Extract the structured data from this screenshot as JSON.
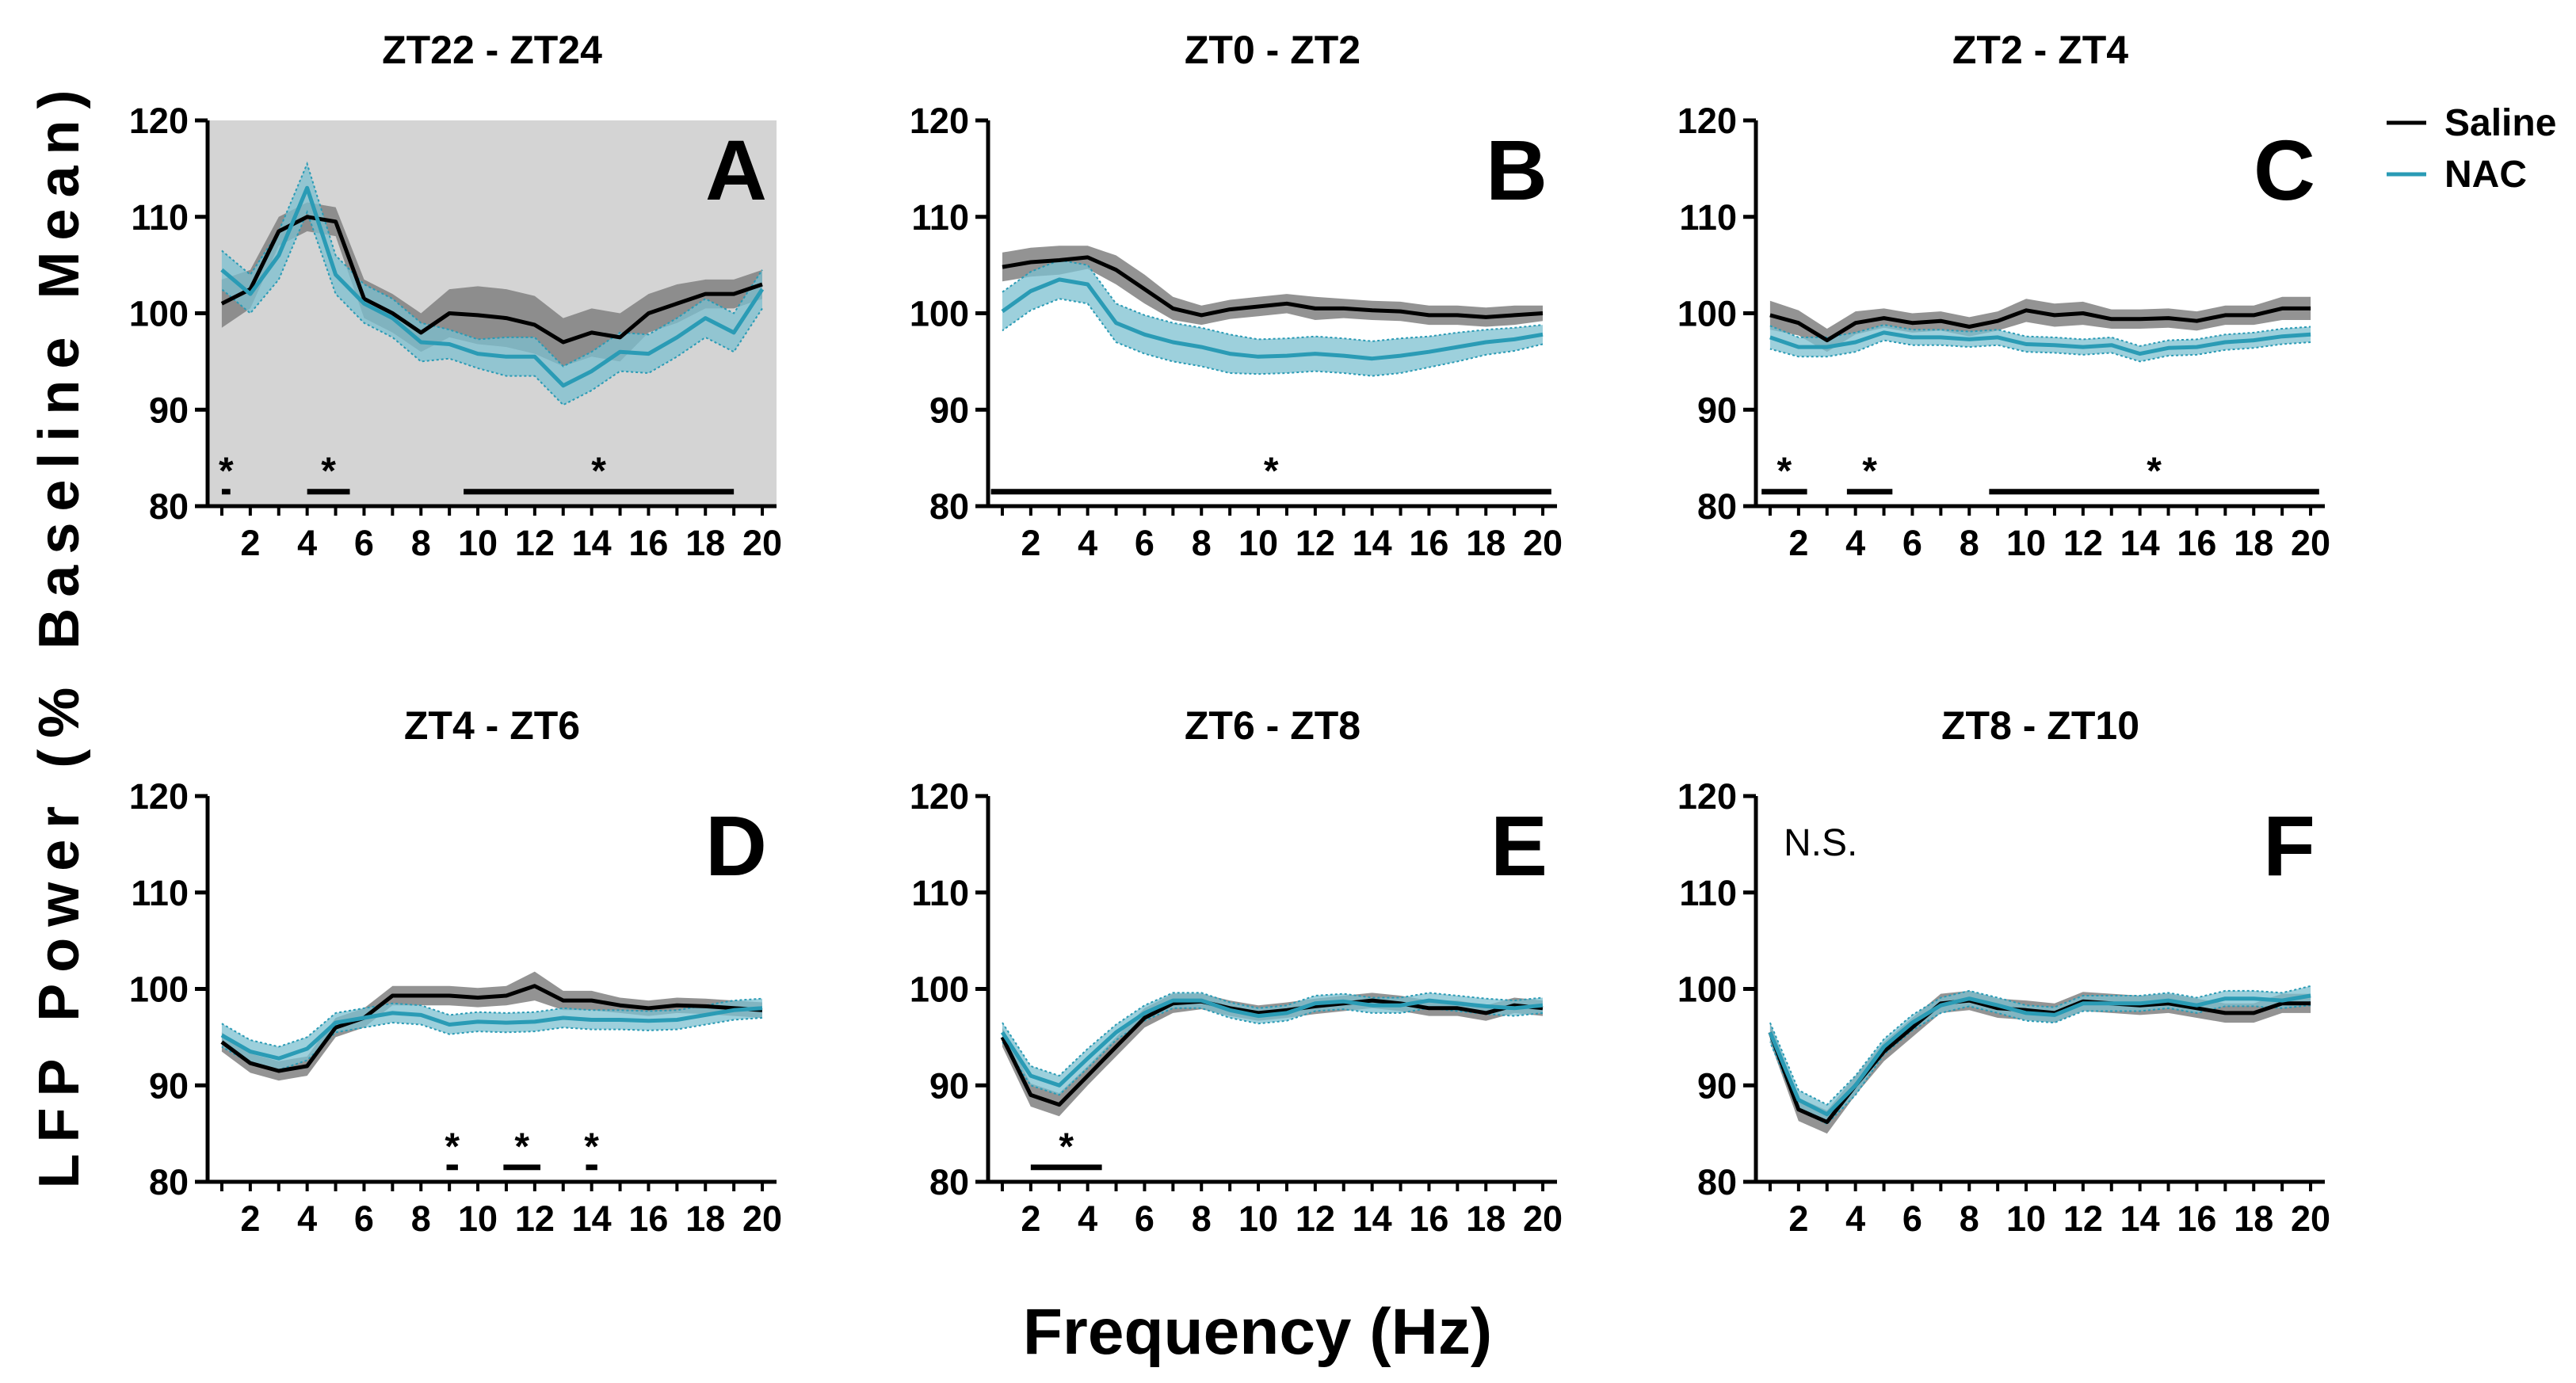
{
  "figure": {
    "ylabel": "LFP Power (% Baseline Mean)",
    "xlabel": "Frequency (Hz)",
    "legend": [
      {
        "name": "Saline",
        "color": "#000000"
      },
      {
        "name": "NAC",
        "color": "#2a9bb5"
      }
    ],
    "colors": {
      "saline": "#000000",
      "saline_band": "#808080",
      "nac": "#2a9bb5",
      "nac_band": "#7cc0d0",
      "shaded_bg": "#d4d4d4"
    }
  },
  "chart_data": [
    {
      "panel": "A",
      "title": "ZT22 - ZT24",
      "type": "line",
      "shaded_background": true,
      "note": "",
      "x": [
        1,
        2,
        3,
        4,
        5,
        6,
        7,
        8,
        9,
        10,
        11,
        12,
        13,
        14,
        15,
        16,
        17,
        18,
        19,
        20
      ],
      "xticks": [
        2,
        4,
        6,
        8,
        10,
        12,
        14,
        16,
        18,
        20
      ],
      "ylim": [
        80,
        120
      ],
      "yticks": [
        80,
        90,
        100,
        110,
        120
      ],
      "series": [
        {
          "name": "Saline",
          "values": [
            101,
            102.5,
            108.5,
            110,
            109.5,
            101.5,
            100,
            98,
            100,
            99.8,
            99.5,
            98.8,
            97,
            98,
            97.5,
            100,
            101,
            102,
            102,
            103
          ],
          "sem": [
            2.5,
            2,
            1.5,
            1.5,
            1.5,
            2,
            2,
            2,
            2.5,
            3,
            3,
            3,
            2.5,
            2.5,
            2.5,
            2,
            2,
            1.5,
            1.5,
            1.5
          ]
        },
        {
          "name": "NAC",
          "values": [
            104.5,
            102,
            106,
            113,
            104,
            101,
            99.5,
            97,
            96.8,
            95.8,
            95.5,
            95.5,
            92.5,
            94,
            96,
            95.8,
            97.5,
            99.5,
            98,
            102.5
          ],
          "sem": [
            2,
            2,
            2.5,
            2.5,
            2,
            2,
            2,
            2,
            1.5,
            1.5,
            2,
            2,
            2,
            2,
            2,
            2,
            2,
            2,
            2,
            2
          ]
        }
      ],
      "significance": [
        {
          "from": 1,
          "to": 1.3,
          "label": "*"
        },
        {
          "from": 4,
          "to": 5.5,
          "label": "*"
        },
        {
          "from": 9.5,
          "to": 19,
          "label": "*"
        }
      ]
    },
    {
      "panel": "B",
      "title": "ZT0 - ZT2",
      "type": "line",
      "shaded_background": false,
      "note": "",
      "x": [
        1,
        2,
        3,
        4,
        5,
        6,
        7,
        8,
        9,
        10,
        11,
        12,
        13,
        14,
        15,
        16,
        17,
        18,
        19,
        20
      ],
      "xticks": [
        2,
        4,
        6,
        8,
        10,
        12,
        14,
        16,
        18,
        20
      ],
      "ylim": [
        80,
        120
      ],
      "yticks": [
        80,
        90,
        100,
        110,
        120
      ],
      "series": [
        {
          "name": "Saline",
          "values": [
            104.8,
            105.3,
            105.5,
            105.8,
            104.5,
            102.5,
            100.5,
            99.8,
            100.4,
            100.7,
            101,
            100.5,
            100.5,
            100.3,
            100.2,
            99.8,
            99.8,
            99.6,
            99.8,
            100
          ],
          "sem": [
            1.5,
            1.5,
            1.5,
            1.2,
            1.5,
            1.5,
            1.2,
            1,
            1,
            1,
            1,
            1.2,
            1,
            1,
            1,
            1,
            1,
            1,
            1,
            0.8
          ]
        },
        {
          "name": "NAC",
          "values": [
            100.2,
            102.3,
            103.5,
            103,
            99,
            97.8,
            97,
            96.5,
            95.8,
            95.5,
            95.6,
            95.8,
            95.6,
            95.3,
            95.6,
            96,
            96.5,
            97,
            97.3,
            97.8
          ],
          "sem": [
            2,
            2,
            2,
            2,
            2,
            2,
            2,
            2,
            2,
            1.8,
            1.8,
            1.8,
            1.8,
            1.8,
            1.8,
            1.6,
            1.5,
            1.3,
            1.2,
            1
          ]
        }
      ],
      "significance": [
        {
          "from": 0.6,
          "to": 20.3,
          "label": "*"
        }
      ]
    },
    {
      "panel": "C",
      "title": "ZT2 - ZT4",
      "type": "line",
      "shaded_background": false,
      "note": "",
      "x": [
        1,
        2,
        3,
        4,
        5,
        6,
        7,
        8,
        9,
        10,
        11,
        12,
        13,
        14,
        15,
        16,
        17,
        18,
        19,
        20
      ],
      "xticks": [
        2,
        4,
        6,
        8,
        10,
        12,
        14,
        16,
        18,
        20
      ],
      "ylim": [
        80,
        120
      ],
      "yticks": [
        80,
        90,
        100,
        110,
        120
      ],
      "series": [
        {
          "name": "Saline",
          "values": [
            99.8,
            99,
            97.2,
            99,
            99.5,
            99,
            99.2,
            98.6,
            99.2,
            100.3,
            99.8,
            100,
            99.4,
            99.4,
            99.5,
            99.2,
            99.8,
            99.8,
            100.5,
            100.5
          ],
          "sem": [
            1.5,
            1.3,
            1.2,
            1.2,
            1,
            1,
            1,
            1,
            1,
            1.2,
            1.2,
            1.2,
            1,
            1,
            1,
            1,
            1,
            1,
            1.2,
            1.2
          ]
        },
        {
          "name": "NAC",
          "values": [
            97.5,
            96.5,
            96.5,
            97,
            98,
            97.5,
            97.5,
            97.3,
            97.5,
            96.8,
            96.7,
            96.5,
            96.7,
            95.8,
            96.4,
            96.5,
            97,
            97.2,
            97.6,
            97.8
          ],
          "sem": [
            1.2,
            1,
            1,
            1,
            0.8,
            0.8,
            0.8,
            0.8,
            0.8,
            0.8,
            0.8,
            0.8,
            0.8,
            0.8,
            0.8,
            0.8,
            0.8,
            0.8,
            0.8,
            0.8
          ]
        }
      ],
      "significance": [
        {
          "from": 0.7,
          "to": 2.3,
          "label": "*"
        },
        {
          "from": 3.7,
          "to": 5.3,
          "label": "*"
        },
        {
          "from": 8.7,
          "to": 20.3,
          "label": "*"
        }
      ]
    },
    {
      "panel": "D",
      "title": "ZT4 - ZT6",
      "type": "line",
      "shaded_background": false,
      "note": "",
      "x": [
        1,
        2,
        3,
        4,
        5,
        6,
        7,
        8,
        9,
        10,
        11,
        12,
        13,
        14,
        15,
        16,
        17,
        18,
        19,
        20
      ],
      "xticks": [
        2,
        4,
        6,
        8,
        10,
        12,
        14,
        16,
        18,
        20
      ],
      "ylim": [
        80,
        120
      ],
      "yticks": [
        80,
        90,
        100,
        110,
        120
      ],
      "series": [
        {
          "name": "Saline",
          "values": [
            94.5,
            92.3,
            91.5,
            92,
            96,
            97,
            99.3,
            99.3,
            99.3,
            99.1,
            99.3,
            100.3,
            98.8,
            98.8,
            98.3,
            98,
            98.3,
            98.2,
            98,
            97.8
          ],
          "sem": [
            1,
            1,
            1,
            1,
            1,
            1,
            1,
            1,
            1,
            1,
            1,
            1.5,
            1,
            1,
            0.8,
            0.8,
            0.8,
            0.8,
            0.8,
            0.8
          ]
        },
        {
          "name": "NAC",
          "values": [
            95.2,
            93.5,
            92.8,
            93.8,
            96.5,
            97,
            97.5,
            97.3,
            96.3,
            96.6,
            96.5,
            96.6,
            97,
            96.8,
            96.8,
            96.7,
            96.8,
            97.3,
            97.8,
            98
          ],
          "sem": [
            1.2,
            1.2,
            1.2,
            1.2,
            1,
            1,
            1,
            1,
            1,
            1,
            1,
            1,
            1,
            1,
            1,
            1,
            1,
            1,
            1,
            1
          ]
        }
      ],
      "significance": [
        {
          "from": 8.9,
          "to": 9.3,
          "label": "*"
        },
        {
          "from": 10.9,
          "to": 12.2,
          "label": "*"
        },
        {
          "from": 13.8,
          "to": 14.2,
          "label": "*"
        }
      ]
    },
    {
      "panel": "E",
      "title": "ZT6 -  ZT8",
      "type": "line",
      "shaded_background": false,
      "note": "",
      "x": [
        1,
        2,
        3,
        4,
        5,
        6,
        7,
        8,
        9,
        10,
        11,
        12,
        13,
        14,
        15,
        16,
        17,
        18,
        19,
        20
      ],
      "xticks": [
        2,
        4,
        6,
        8,
        10,
        12,
        14,
        16,
        18,
        20
      ],
      "ylim": [
        80,
        120
      ],
      "yticks": [
        80,
        90,
        100,
        110,
        120
      ],
      "series": [
        {
          "name": "Saline",
          "values": [
            95,
            89,
            88,
            91,
            94,
            97,
            98.5,
            98.7,
            98,
            97.5,
            97.8,
            98.2,
            98.5,
            98.8,
            98.5,
            98,
            98,
            97.5,
            98.3,
            98
          ],
          "sem": [
            1,
            1.2,
            1.2,
            1,
            1,
            1,
            1,
            0.8,
            0.8,
            0.8,
            0.8,
            0.8,
            0.8,
            0.8,
            0.8,
            0.8,
            0.8,
            0.8,
            0.8,
            0.8
          ]
        },
        {
          "name": "NAC",
          "values": [
            95.5,
            91,
            90,
            92.8,
            95.5,
            97.5,
            98.8,
            98.8,
            97.8,
            97.2,
            97.5,
            98.5,
            98.7,
            98.3,
            98.3,
            98.8,
            98.5,
            98.2,
            98,
            98.3
          ],
          "sem": [
            1,
            1,
            1,
            1,
            0.8,
            0.8,
            0.8,
            0.8,
            0.8,
            0.8,
            0.8,
            0.8,
            0.8,
            0.8,
            0.8,
            0.8,
            0.8,
            0.8,
            0.8,
            0.8
          ]
        }
      ],
      "significance": [
        {
          "from": 2,
          "to": 4.5,
          "label": "*"
        }
      ]
    },
    {
      "panel": "F",
      "title": "ZT8 - ZT10",
      "type": "line",
      "shaded_background": false,
      "note": "N.S.",
      "x": [
        1,
        2,
        3,
        4,
        5,
        6,
        7,
        8,
        9,
        10,
        11,
        12,
        13,
        14,
        15,
        16,
        17,
        18,
        19,
        20
      ],
      "xticks": [
        2,
        4,
        6,
        8,
        10,
        12,
        14,
        16,
        18,
        20
      ],
      "ylim": [
        80,
        120
      ],
      "yticks": [
        80,
        90,
        100,
        110,
        120
      ],
      "series": [
        {
          "name": "Saline",
          "values": [
            95.5,
            87.5,
            86.2,
            90,
            93.5,
            96,
            98.5,
            98.8,
            98,
            97.8,
            97.5,
            98.7,
            98.5,
            98.3,
            98.5,
            98,
            97.5,
            97.5,
            98.5,
            98.5
          ],
          "sem": [
            1,
            1.2,
            1.2,
            1,
            1,
            1,
            1,
            1,
            1,
            1,
            1,
            1,
            1,
            1,
            1,
            1,
            1,
            1,
            1,
            1
          ]
        },
        {
          "name": "NAC",
          "values": [
            95.5,
            88.5,
            87,
            90,
            94,
            96.5,
            98.3,
            99,
            98.3,
            97.5,
            97.3,
            98.5,
            98.5,
            98.5,
            98.8,
            98.3,
            99,
            99,
            98.8,
            99.3
          ],
          "sem": [
            1,
            1,
            1,
            1,
            0.8,
            0.8,
            0.8,
            0.8,
            0.8,
            0.8,
            0.8,
            0.8,
            0.8,
            0.8,
            0.8,
            0.8,
            0.8,
            0.8,
            0.8,
            1
          ]
        }
      ],
      "significance": []
    }
  ]
}
